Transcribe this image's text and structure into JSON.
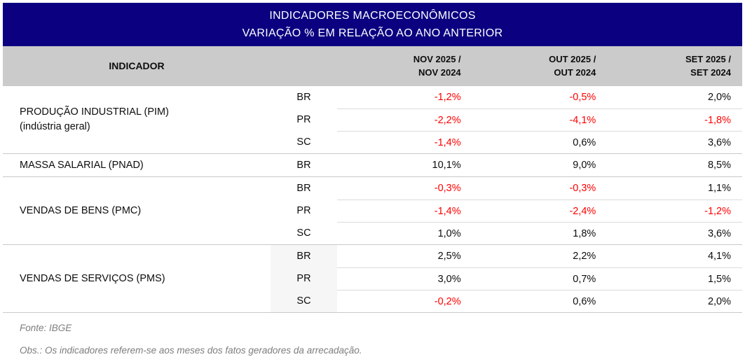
{
  "header": {
    "title": "INDICADORES MACROECONÔMICOS",
    "subtitle": "VARIAÇÃO % EM RELAÇÃO AO ANO ANTERIOR"
  },
  "columns": {
    "indicator": "INDICADOR",
    "periods": [
      {
        "line1": "NOV 2025 /",
        "line2": "NOV 2024"
      },
      {
        "line1": "OUT 2025 /",
        "line2": "OUT 2024"
      },
      {
        "line1": "SET 2025 /",
        "line2": "SET 2024"
      }
    ]
  },
  "groups": [
    {
      "name": "PRODUÇÃO INDUSTRIAL (PIM)",
      "subname": "(indústria geral)",
      "highlight_region": false,
      "rows": [
        {
          "region": "BR",
          "values": [
            "-1,2%",
            "-0,5%",
            "2,0%"
          ]
        },
        {
          "region": "PR",
          "values": [
            "-2,2%",
            "-4,1%",
            "-1,8%"
          ]
        },
        {
          "region": "SC",
          "values": [
            "-1,4%",
            "0,6%",
            "3,6%"
          ]
        }
      ]
    },
    {
      "name": "MASSA SALARIAL (PNAD)",
      "subname": "",
      "highlight_region": false,
      "rows": [
        {
          "region": "BR",
          "values": [
            "10,1%",
            "9,0%",
            "8,5%"
          ]
        }
      ]
    },
    {
      "name": "VENDAS DE BENS (PMC)",
      "subname": "",
      "highlight_region": false,
      "rows": [
        {
          "region": "BR",
          "values": [
            "-0,3%",
            "-0,3%",
            "1,1%"
          ]
        },
        {
          "region": "PR",
          "values": [
            "-1,4%",
            "-2,4%",
            "-1,2%"
          ]
        },
        {
          "region": "SC",
          "values": [
            "1,0%",
            "1,8%",
            "3,6%"
          ]
        }
      ]
    },
    {
      "name": "VENDAS DE SERVIÇOS (PMS)",
      "subname": "",
      "highlight_region": true,
      "rows": [
        {
          "region": "BR",
          "values": [
            "2,5%",
            "2,2%",
            "4,1%"
          ]
        },
        {
          "region": "PR",
          "values": [
            "3,0%",
            "0,7%",
            "1,5%"
          ]
        },
        {
          "region": "SC",
          "values": [
            "-0,2%",
            "0,6%",
            "2,0%"
          ]
        }
      ]
    }
  ],
  "footer": {
    "source": "Fonte: IBGE",
    "note": "Obs.: Os indicadores referem-se aos meses dos fatos geradores da arrecadação."
  },
  "colors": {
    "header_bg": "#0A0080",
    "column_header_bg": "#CBCBCB",
    "negative": "#FF0000",
    "positive_text": "#0d0d0d"
  }
}
